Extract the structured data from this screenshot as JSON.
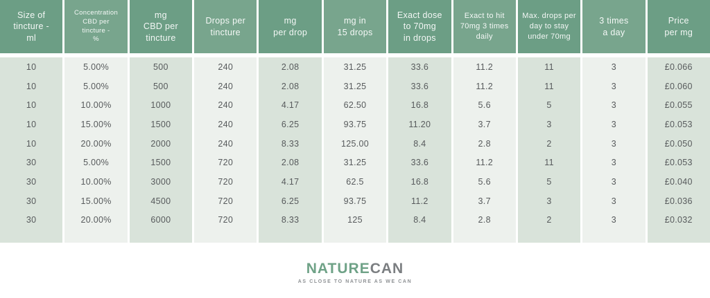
{
  "colors": {
    "header_green_dark": "#6C9E85",
    "header_green_light": "#78A58D",
    "body_sage": "#D9E3DA",
    "body_light": "#EDF1ED",
    "text_dark": "#575A5C",
    "logo_green": "#6FA287",
    "logo_grey": "#7B7E81",
    "tagline_grey": "#8E9194"
  },
  "chart_data": {
    "type": "table",
    "columns": [
      "Size of\ntincture -\nml",
      "Concentration\nCBD per\ntincture -\n%",
      "mg\nCBD per\ntincture",
      "Drops per\ntincture",
      "mg\nper drop",
      "mg in\n15 drops",
      "Exact dose\nto 70mg\nin drops",
      "Exact to hit\n70mg 3 times\ndaily",
      "Max. drops per\nday to stay\nunder 70mg",
      "3 times\na day",
      "Price\nper mg"
    ],
    "rows": [
      [
        "10",
        "5.00%",
        "500",
        "240",
        "2.08",
        "31.25",
        "33.6",
        "11.2",
        "11",
        "3",
        "£0.066"
      ],
      [
        "10",
        "5.00%",
        "500",
        "240",
        "2.08",
        "31.25",
        "33.6",
        "11.2",
        "11",
        "3",
        "£0.060"
      ],
      [
        "10",
        "10.00%",
        "1000",
        "240",
        "4.17",
        "62.50",
        "16.8",
        "5.6",
        "5",
        "3",
        "£0.055"
      ],
      [
        "10",
        "15.00%",
        "1500",
        "240",
        "6.25",
        "93.75",
        "11.20",
        "3.7",
        "3",
        "3",
        "£0.053"
      ],
      [
        "10",
        "20.00%",
        "2000",
        "240",
        "8.33",
        "125.00",
        "8.4",
        "2.8",
        "2",
        "3",
        "£0.050"
      ],
      [
        "30",
        "5.00%",
        "1500",
        "720",
        "2.08",
        "31.25",
        "33.6",
        "11.2",
        "11",
        "3",
        "£0.053"
      ],
      [
        "30",
        "10.00%",
        "3000",
        "720",
        "4.17",
        "62.5",
        "16.8",
        "5.6",
        "5",
        "3",
        "£0.040"
      ],
      [
        "30",
        "15.00%",
        "4500",
        "720",
        "6.25",
        "93.75",
        "11.2",
        "3.7",
        "3",
        "3",
        "£0.036"
      ],
      [
        "30",
        "20.00%",
        "6000",
        "720",
        "8.33",
        "125",
        "8.4",
        "2.8",
        "2",
        "3",
        "£0.032"
      ]
    ]
  },
  "logo": {
    "brand_primary": "NATURE",
    "brand_secondary": "CAN",
    "tagline": "AS CLOSE TO NATURE AS WE CAN"
  }
}
